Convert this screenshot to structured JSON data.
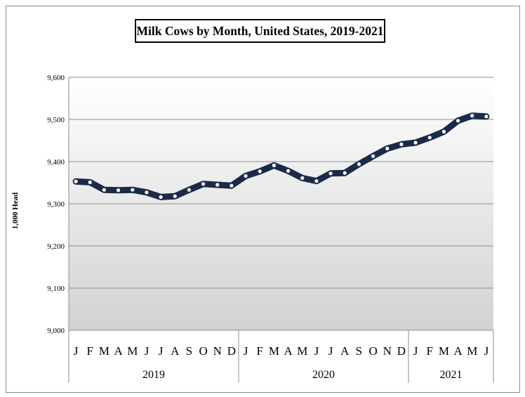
{
  "chart_data": {
    "type": "line",
    "title": "Milk Cows by Month, United States, 2019-2021",
    "ylabel": "1,000 Head",
    "xlabel": "",
    "ylim": [
      9000,
      9600
    ],
    "yticks": [
      9000,
      9100,
      9200,
      9300,
      9400,
      9500,
      9600
    ],
    "ytick_labels": [
      "9,000",
      "9,100",
      "9,200",
      "9,300",
      "9,400",
      "9,500",
      "9,600"
    ],
    "years": [
      {
        "label": "2019",
        "months": [
          "J",
          "F",
          "M",
          "A",
          "M",
          "J",
          "J",
          "A",
          "S",
          "O",
          "N",
          "D"
        ]
      },
      {
        "label": "2020",
        "months": [
          "J",
          "F",
          "M",
          "A",
          "M",
          "J",
          "J",
          "A",
          "S",
          "O",
          "N",
          "D"
        ]
      },
      {
        "label": "2021",
        "months": [
          "J",
          "F",
          "M",
          "A",
          "M",
          "J"
        ]
      }
    ],
    "values": [
      9353,
      9351,
      9333,
      9332,
      9333,
      9327,
      9316,
      9318,
      9333,
      9347,
      9345,
      9343,
      9366,
      9377,
      9391,
      9378,
      9361,
      9354,
      9372,
      9373,
      9394,
      9413,
      9431,
      9441,
      9445,
      9457,
      9471,
      9497,
      9509,
      9507
    ],
    "grid": true,
    "legend": "none",
    "colors": {
      "line": "#1b2a47",
      "marker": "#ffffff",
      "plot_top": "#ffffff",
      "plot_bottom": "#d2d2d2",
      "grid": "#8c8c8c"
    }
  }
}
